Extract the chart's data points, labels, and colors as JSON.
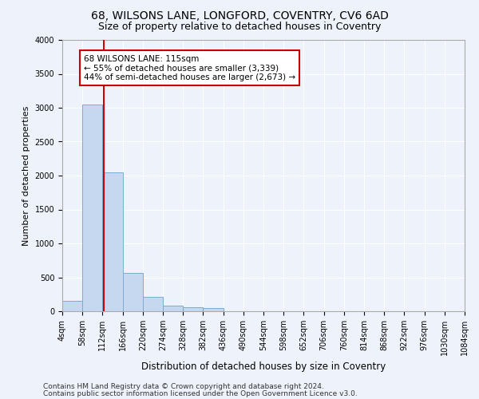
{
  "title1": "68, WILSONS LANE, LONGFORD, COVENTRY, CV6 6AD",
  "title2": "Size of property relative to detached houses in Coventry",
  "xlabel": "Distribution of detached houses by size in Coventry",
  "ylabel": "Number of detached properties",
  "bin_edges": [
    4,
    58,
    112,
    166,
    220,
    274,
    328,
    382,
    436,
    490,
    544,
    598,
    652,
    706,
    760,
    814,
    868,
    922,
    976,
    1030,
    1084
  ],
  "bar_heights": [
    150,
    3050,
    2050,
    560,
    210,
    85,
    55,
    50,
    0,
    0,
    0,
    0,
    0,
    0,
    0,
    0,
    0,
    0,
    0,
    0
  ],
  "bar_color": "#c5d8f0",
  "bar_edge_color": "#7aadd4",
  "property_size": 115,
  "property_line_color": "#cc0000",
  "annotation_text": "68 WILSONS LANE: 115sqm\n← 55% of detached houses are smaller (3,339)\n44% of semi-detached houses are larger (2,673) →",
  "annotation_box_color": "#ffffff",
  "annotation_box_edge_color": "#cc0000",
  "ylim": [
    0,
    4000
  ],
  "yticks": [
    0,
    500,
    1000,
    1500,
    2000,
    2500,
    3000,
    3500,
    4000
  ],
  "tick_labels": [
    "4sqm",
    "58sqm",
    "112sqm",
    "166sqm",
    "220sqm",
    "274sqm",
    "328sqm",
    "382sqm",
    "436sqm",
    "490sqm",
    "544sqm",
    "598sqm",
    "652sqm",
    "706sqm",
    "760sqm",
    "814sqm",
    "868sqm",
    "922sqm",
    "976sqm",
    "1030sqm",
    "1084sqm"
  ],
  "footnote1": "Contains HM Land Registry data © Crown copyright and database right 2024.",
  "footnote2": "Contains public sector information licensed under the Open Government Licence v3.0.",
  "bg_color": "#eef2fa",
  "grid_color": "#ffffff",
  "title1_fontsize": 10,
  "title2_fontsize": 9,
  "xlabel_fontsize": 8.5,
  "ylabel_fontsize": 8,
  "tick_fontsize": 7,
  "footnote_fontsize": 6.5,
  "annot_fontsize": 7.5
}
